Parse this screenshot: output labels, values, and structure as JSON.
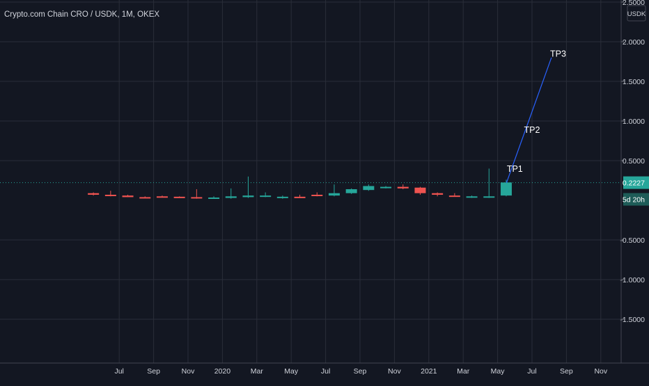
{
  "header": {
    "symbol_title": "Crypto.com Chain CRO / USDK, 1M, OKEX"
  },
  "price_axis": {
    "currency_badge": "USDK",
    "last_price_label": "0.2227",
    "countdown_label": "5d 20h"
  },
  "colors": {
    "background": "#131722",
    "grid": "#2a2e39",
    "axis_text": "#d1d4dc",
    "up": "#26a69a",
    "down": "#ef5350",
    "trend_line": "#2962ff",
    "price_line": "#26a69a",
    "annotation_text": "#ffffff"
  },
  "chart_data": {
    "type": "candlestick",
    "title": "Crypto.com Chain CRO / USDK, 1M, OKEX",
    "xlabel": "",
    "ylabel": "",
    "timeframe": "1M",
    "ylim": [
      -2.0,
      2.5
    ],
    "xlim": [
      "2019-03",
      "2021-12"
    ],
    "grid": true,
    "y_ticks": [
      {
        "value": 2.5,
        "label": "2.5000"
      },
      {
        "value": 2.0,
        "label": "2.0000"
      },
      {
        "value": 1.5,
        "label": "1.5000"
      },
      {
        "value": 1.0,
        "label": "1.0000"
      },
      {
        "value": 0.5,
        "label": "0.5000"
      },
      {
        "value": -0.5,
        "label": "-0.5000"
      },
      {
        "value": -1.0,
        "label": "-1.0000"
      },
      {
        "value": -1.5,
        "label": "-1.5000"
      }
    ],
    "x_ticks": [
      {
        "date": "2019-07",
        "label": "Jul"
      },
      {
        "date": "2019-09",
        "label": "Sep"
      },
      {
        "date": "2019-11",
        "label": "Nov"
      },
      {
        "date": "2020-01",
        "label": "2020"
      },
      {
        "date": "2020-03",
        "label": "Mar"
      },
      {
        "date": "2020-05",
        "label": "May"
      },
      {
        "date": "2020-07",
        "label": "Jul"
      },
      {
        "date": "2020-09",
        "label": "Sep"
      },
      {
        "date": "2020-11",
        "label": "Nov"
      },
      {
        "date": "2021-01",
        "label": "2021"
      },
      {
        "date": "2021-03",
        "label": "Mar"
      },
      {
        "date": "2021-05",
        "label": "May"
      },
      {
        "date": "2021-07",
        "label": "Jul"
      },
      {
        "date": "2021-09",
        "label": "Sep"
      },
      {
        "date": "2021-11",
        "label": "Nov"
      }
    ],
    "candles": [
      {
        "date": "2019-05",
        "open": 0.09,
        "high": 0.1,
        "low": 0.06,
        "close": 0.07
      },
      {
        "date": "2019-06",
        "open": 0.07,
        "high": 0.12,
        "low": 0.05,
        "close": 0.06
      },
      {
        "date": "2019-07",
        "open": 0.06,
        "high": 0.07,
        "low": 0.04,
        "close": 0.04
      },
      {
        "date": "2019-08",
        "open": 0.04,
        "high": 0.05,
        "low": 0.03,
        "close": 0.035
      },
      {
        "date": "2019-09",
        "open": 0.05,
        "high": 0.06,
        "low": 0.035,
        "close": 0.04
      },
      {
        "date": "2019-10",
        "open": 0.045,
        "high": 0.05,
        "low": 0.035,
        "close": 0.04
      },
      {
        "date": "2019-11",
        "open": 0.04,
        "high": 0.14,
        "low": 0.02,
        "close": 0.025
      },
      {
        "date": "2019-12",
        "open": 0.025,
        "high": 0.05,
        "low": 0.02,
        "close": 0.035
      },
      {
        "date": "2020-01",
        "open": 0.03,
        "high": 0.15,
        "low": 0.02,
        "close": 0.05
      },
      {
        "date": "2020-02",
        "open": 0.04,
        "high": 0.3,
        "low": 0.03,
        "close": 0.06
      },
      {
        "date": "2020-03",
        "open": 0.05,
        "high": 0.1,
        "low": 0.04,
        "close": 0.06
      },
      {
        "date": "2020-04",
        "open": 0.035,
        "high": 0.06,
        "low": 0.02,
        "close": 0.045
      },
      {
        "date": "2020-05",
        "open": 0.045,
        "high": 0.07,
        "low": 0.03,
        "close": 0.04
      },
      {
        "date": "2020-06",
        "open": 0.07,
        "high": 0.1,
        "low": 0.05,
        "close": 0.06
      },
      {
        "date": "2020-07",
        "open": 0.06,
        "high": 0.2,
        "low": 0.05,
        "close": 0.09
      },
      {
        "date": "2020-08",
        "open": 0.09,
        "high": 0.15,
        "low": 0.08,
        "close": 0.14
      },
      {
        "date": "2020-09",
        "open": 0.13,
        "high": 0.2,
        "low": 0.12,
        "close": 0.18
      },
      {
        "date": "2020-10",
        "open": 0.16,
        "high": 0.18,
        "low": 0.15,
        "close": 0.17
      },
      {
        "date": "2020-11",
        "open": 0.17,
        "high": 0.2,
        "low": 0.14,
        "close": 0.15
      },
      {
        "date": "2020-12",
        "open": 0.16,
        "high": 0.17,
        "low": 0.07,
        "close": 0.09
      },
      {
        "date": "2021-01",
        "open": 0.09,
        "high": 0.1,
        "low": 0.05,
        "close": 0.07
      },
      {
        "date": "2021-02",
        "open": 0.06,
        "high": 0.09,
        "low": 0.05,
        "close": 0.05
      },
      {
        "date": "2021-03",
        "open": 0.045,
        "high": 0.06,
        "low": 0.03,
        "close": 0.05
      },
      {
        "date": "2021-04",
        "open": 0.045,
        "high": 0.4,
        "low": 0.03,
        "close": 0.05
      },
      {
        "date": "2021-05",
        "open": 0.06,
        "high": 0.26,
        "low": 0.05,
        "close": 0.225
      }
    ],
    "trend_line": [
      {
        "date": "2021-05-17",
        "value": 0.22
      },
      {
        "date": "2021-08-05",
        "value": 1.8
      }
    ],
    "annotations": [
      {
        "text": "TP1",
        "date": "2021-06-01",
        "value": 0.36
      },
      {
        "text": "TP2",
        "date": "2021-07-01",
        "value": 0.85
      },
      {
        "text": "TP3",
        "date": "2021-08-17",
        "value": 1.81
      }
    ],
    "last_price": 0.2227
  }
}
